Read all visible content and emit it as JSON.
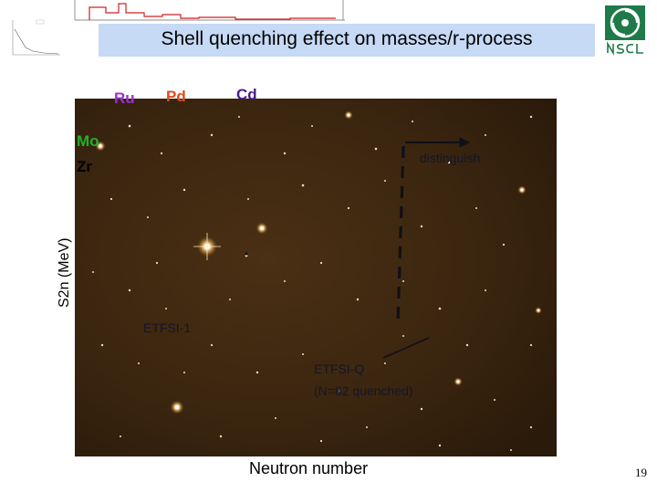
{
  "slide": {
    "title": "Shell quenching effect on masses/r-process",
    "page_number": "19"
  },
  "labels": {
    "ru": "Ru",
    "pd": "Pd",
    "cd": "Cd",
    "mo": "Mo",
    "zr": "Zr",
    "y_axis": "S2n (MeV)",
    "x_axis": "Neutron number"
  },
  "annotations": {
    "distinguish": "distinguish",
    "etfsi1": "ETFSI-1",
    "etfsiq_line1": "ETFSI-Q",
    "etfsiq_line2": "(N=82 quenched)"
  },
  "colors": {
    "title_band": "#c6d9f5",
    "ru": "#9b30d0",
    "pd": "#e04a1a",
    "cd": "#4b1c8c",
    "mo": "#22b02a",
    "starfield": "#3b2610",
    "logo_green": "#1f7a4a"
  },
  "icons": {
    "logo": "nscl-logo"
  }
}
